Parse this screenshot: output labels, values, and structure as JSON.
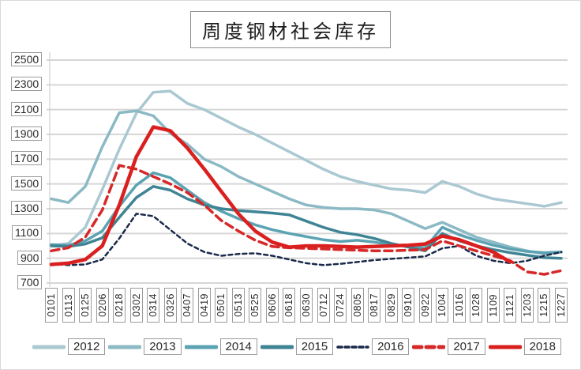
{
  "chart_data": {
    "type": "line",
    "title": "周度钢材社会库存",
    "xlabel": "",
    "ylabel": "",
    "ylim": [
      700,
      2500
    ],
    "y_ticks": [
      2500,
      2300,
      2100,
      1900,
      1700,
      1500,
      1300,
      1100,
      900,
      700
    ],
    "grid": true,
    "legend_position": "bottom",
    "categories": [
      "0101",
      "0113",
      "0125",
      "0206",
      "0218",
      "0302",
      "0314",
      "0326",
      "0407",
      "0419",
      "0501",
      "0513",
      "0525",
      "0606",
      "0618",
      "0630",
      "0712",
      "0724",
      "0805",
      "0817",
      "0829",
      "0910",
      "0922",
      "1004",
      "1016",
      "1028",
      "1109",
      "1121",
      "1203",
      "1215",
      "1227"
    ],
    "series": [
      {
        "name": "2012",
        "color": "#aac8d2",
        "dash": "none",
        "width": 3.5,
        "values": [
          1000,
          1020,
          1150,
          1455,
          1780,
          2070,
          2240,
          2250,
          2150,
          2100,
          2030,
          1960,
          1900,
          1830,
          1760,
          1690,
          1620,
          1560,
          1520,
          1490,
          1460,
          1450,
          1430,
          1520,
          1480,
          1420,
          1380,
          1360,
          1340,
          1320,
          1350
        ]
      },
      {
        "name": "2013",
        "color": "#8bb9c4",
        "dash": "none",
        "width": 3.5,
        "values": [
          1380,
          1350,
          1480,
          1800,
          2075,
          2090,
          2050,
          1910,
          1820,
          1700,
          1640,
          1560,
          1500,
          1440,
          1380,
          1330,
          1310,
          1300,
          1300,
          1290,
          1260,
          1200,
          1140,
          1190,
          1130,
          1070,
          1030,
          990,
          960,
          935,
          950
        ]
      },
      {
        "name": "2014",
        "color": "#5ba3b2",
        "dash": "none",
        "width": 3.5,
        "values": [
          1010,
          1005,
          1040,
          1120,
          1320,
          1490,
          1590,
          1550,
          1450,
          1350,
          1280,
          1220,
          1170,
          1130,
          1100,
          1075,
          1050,
          1035,
          1045,
          1030,
          1010,
          995,
          985,
          1150,
          1090,
          1045,
          1005,
          975,
          955,
          945,
          950
        ]
      },
      {
        "name": "2015",
        "color": "#3f8494",
        "dash": "none",
        "width": 3.5,
        "values": [
          1000,
          995,
          1015,
          1065,
          1230,
          1390,
          1480,
          1450,
          1380,
          1330,
          1300,
          1285,
          1275,
          1265,
          1250,
          1200,
          1150,
          1110,
          1090,
          1060,
          1020,
          990,
          960,
          1100,
          1040,
          1000,
          970,
          945,
          925,
          905,
          900
        ]
      },
      {
        "name": "2016",
        "color": "#1b2a4a",
        "dash": "5 4",
        "width": 2.5,
        "values": [
          855,
          845,
          850,
          890,
          1060,
          1260,
          1240,
          1130,
          1020,
          950,
          920,
          935,
          940,
          920,
          890,
          860,
          845,
          855,
          870,
          885,
          895,
          905,
          915,
          980,
          1000,
          920,
          880,
          860,
          880,
          920,
          950
        ]
      },
      {
        "name": "2017",
        "color": "#d62828",
        "dash": "10 6",
        "width": 3.5,
        "values": [
          960,
          985,
          1070,
          1290,
          1650,
          1620,
          1560,
          1500,
          1430,
          1330,
          1205,
          1120,
          1045,
          995,
          985,
          980,
          975,
          970,
          965,
          960,
          960,
          965,
          970,
          1040,
          1000,
          960,
          920,
          880,
          790,
          770,
          800
        ]
      },
      {
        "name": "2018",
        "color": "#da1f1f",
        "dash": "none",
        "width": 4.5,
        "values": [
          850,
          860,
          890,
          1000,
          1330,
          1720,
          1960,
          1930,
          1790,
          1620,
          1440,
          1260,
          1120,
          1030,
          990,
          1000,
          1000,
          995,
          990,
          995,
          1000,
          1005,
          1015,
          1080,
          1050,
          1000,
          950,
          870,
          null,
          null,
          null
        ]
      }
    ]
  }
}
